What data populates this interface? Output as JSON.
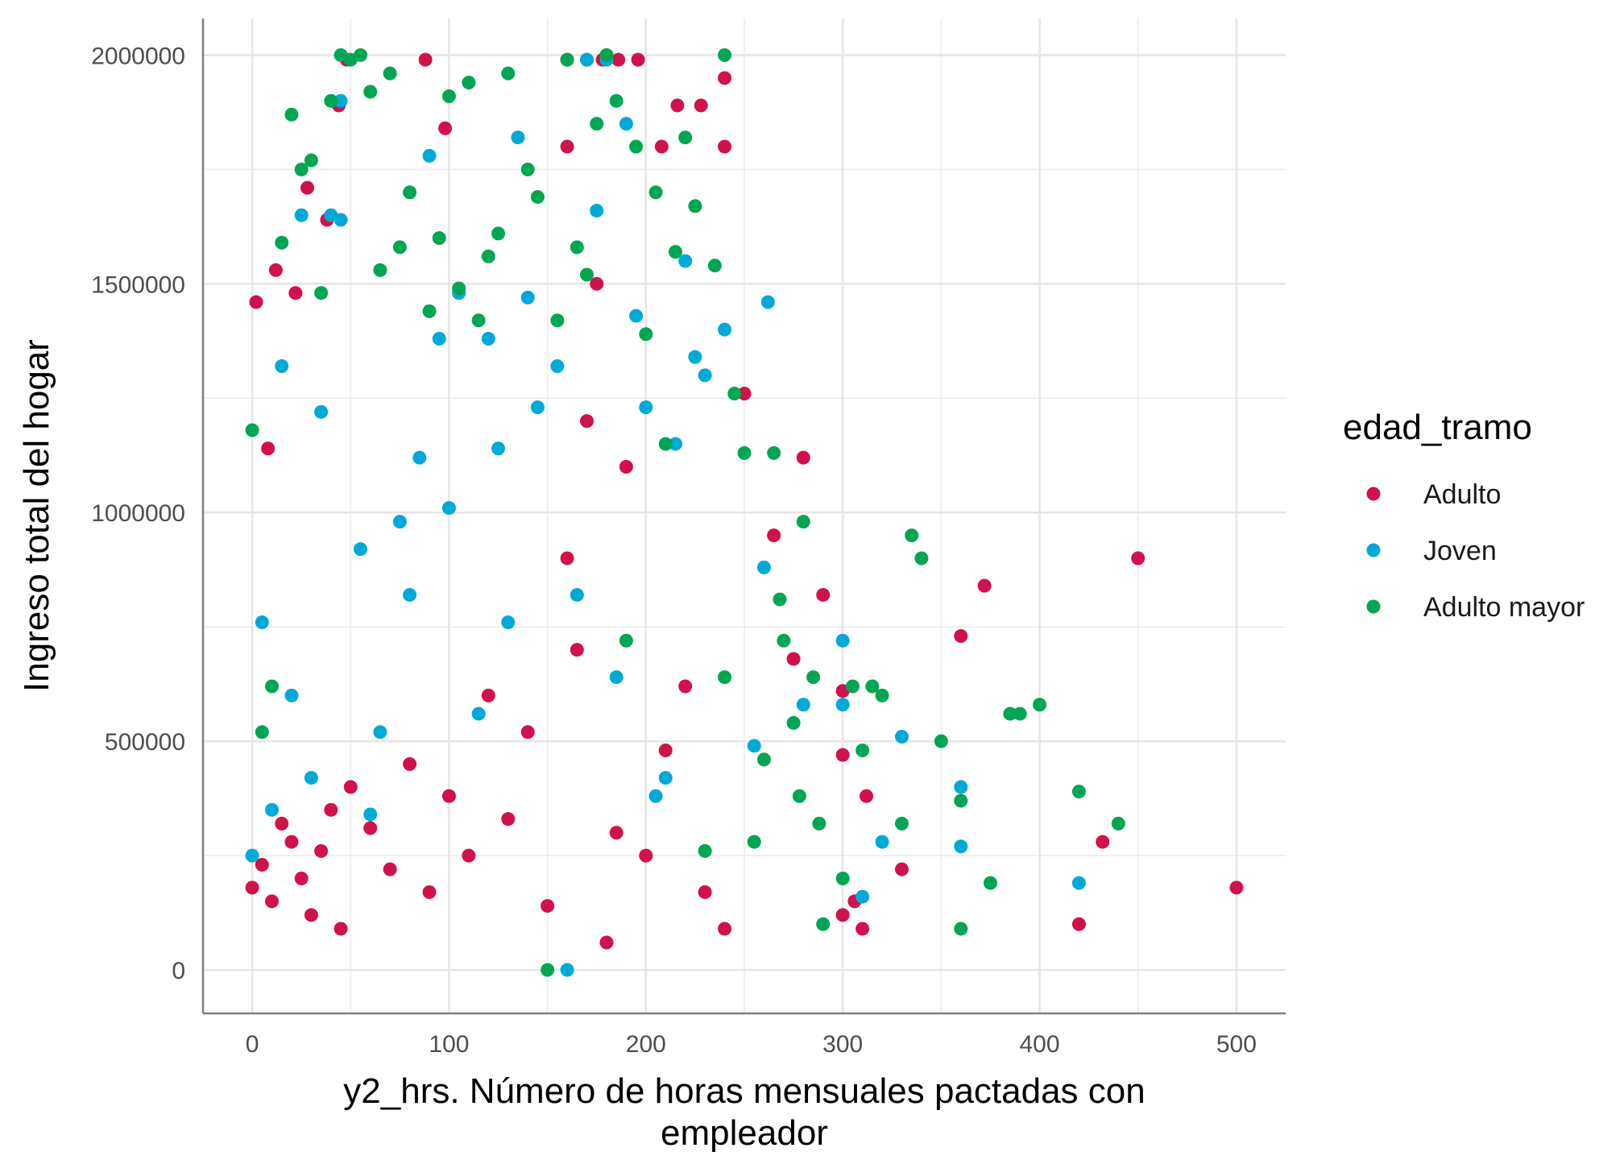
{
  "chart_data": {
    "type": "scatter",
    "title": "",
    "xlabel_lines": [
      "y2_hrs. Número de horas mensuales pactadas con",
      "empleador"
    ],
    "ylabel": "Ingreso total del hogar",
    "xlim": [
      -25,
      525
    ],
    "ylim": [
      -95000,
      2080000
    ],
    "x_ticks": [
      0,
      100,
      200,
      300,
      400,
      500
    ],
    "x_tick_labels": [
      "0",
      "100",
      "200",
      "300",
      "400",
      "500"
    ],
    "y_ticks": [
      0,
      500000,
      1000000,
      1500000,
      2000000
    ],
    "y_tick_labels": [
      "0",
      "500000",
      "1000000",
      "1500000",
      "2000000"
    ],
    "grid": true,
    "legend": {
      "title": "edad_tramo",
      "position": "right",
      "entries": [
        "Adulto",
        "Joven",
        "Adulto mayor"
      ]
    },
    "series": [
      {
        "name": "Adulto",
        "color": "#d0114a",
        "x": [
          0,
          5,
          10,
          15,
          20,
          25,
          30,
          35,
          40,
          45,
          50,
          60,
          70,
          80,
          90,
          100,
          110,
          120,
          130,
          140,
          150,
          160,
          160,
          165,
          170,
          175,
          180,
          180,
          185,
          190,
          200,
          210,
          220,
          230,
          240,
          240,
          250,
          265,
          275,
          280,
          290,
          300,
          300,
          310,
          330,
          360,
          372,
          420,
          432,
          450,
          500,
          2,
          8,
          12,
          22,
          28,
          38,
          44,
          48,
          88,
          98,
          160,
          170,
          178,
          186,
          196,
          208,
          216,
          228,
          240,
          300,
          306,
          312
        ],
        "y": [
          180000,
          230000,
          150000,
          320000,
          280000,
          200000,
          120000,
          260000,
          350000,
          90000,
          400000,
          310000,
          220000,
          450000,
          170000,
          380000,
          250000,
          600000,
          330000,
          520000,
          140000,
          900000,
          1800000,
          700000,
          1200000,
          1500000,
          2000000,
          60000,
          300000,
          1100000,
          250000,
          480000,
          620000,
          170000,
          1950000,
          90000,
          1260000,
          950000,
          680000,
          1120000,
          820000,
          470000,
          120000,
          90000,
          220000,
          730000,
          840000,
          100000,
          280000,
          900000,
          180000,
          1460000,
          1140000,
          1530000,
          1480000,
          1710000,
          1640000,
          1890000,
          1990000,
          1990000,
          1840000,
          1990000,
          1990000,
          1990000,
          1990000,
          1990000,
          1800000,
          1890000,
          1890000,
          1800000,
          610000,
          150000,
          380000
        ]
      },
      {
        "name": "Joven",
        "color": "#00a9d7",
        "x": [
          0,
          10,
          20,
          30,
          40,
          45,
          60,
          80,
          90,
          100,
          120,
          130,
          140,
          160,
          170,
          180,
          190,
          200,
          210,
          220,
          230,
          240,
          255,
          260,
          262,
          280,
          300,
          300,
          310,
          320,
          330,
          360,
          360,
          420,
          5,
          15,
          25,
          35,
          45,
          55,
          65,
          75,
          85,
          95,
          105,
          115,
          125,
          135,
          145,
          155,
          165,
          175,
          185,
          195,
          205,
          215,
          225
        ],
        "y": [
          250000,
          350000,
          600000,
          420000,
          1650000,
          1900000,
          340000,
          820000,
          1780000,
          1010000,
          1380000,
          760000,
          1470000,
          0,
          1990000,
          1990000,
          1850000,
          1230000,
          420000,
          1550000,
          1300000,
          1400000,
          490000,
          880000,
          1460000,
          580000,
          720000,
          580000,
          160000,
          280000,
          510000,
          400000,
          270000,
          190000,
          760000,
          1320000,
          1650000,
          1220000,
          1640000,
          920000,
          520000,
          980000,
          1120000,
          1380000,
          1480000,
          560000,
          1140000,
          1820000,
          1230000,
          1320000,
          820000,
          1660000,
          640000,
          1430000,
          380000,
          1150000,
          1340000
        ]
      },
      {
        "name": "Adulto mayor",
        "color": "#00a651",
        "x": [
          0,
          5,
          10,
          20,
          30,
          40,
          45,
          50,
          55,
          60,
          70,
          80,
          90,
          100,
          110,
          120,
          130,
          140,
          150,
          160,
          170,
          180,
          190,
          200,
          210,
          220,
          230,
          240,
          240,
          250,
          260,
          265,
          270,
          275,
          280,
          285,
          290,
          300,
          305,
          310,
          315,
          320,
          330,
          335,
          340,
          350,
          360,
          360,
          375,
          385,
          390,
          400,
          420,
          440,
          15,
          25,
          35,
          65,
          75,
          95,
          105,
          115,
          125,
          145,
          155,
          165,
          175,
          185,
          195,
          205,
          215,
          225,
          235,
          245,
          255,
          268,
          278,
          288
        ],
        "y": [
          1180000,
          520000,
          620000,
          1870000,
          1770000,
          1900000,
          2000000,
          1990000,
          2000000,
          1920000,
          1960000,
          1700000,
          1440000,
          1910000,
          1940000,
          1560000,
          1960000,
          1750000,
          0,
          1990000,
          1520000,
          2000000,
          720000,
          1390000,
          1150000,
          1820000,
          260000,
          2000000,
          640000,
          1130000,
          460000,
          1130000,
          720000,
          540000,
          980000,
          640000,
          100000,
          200000,
          620000,
          480000,
          620000,
          600000,
          320000,
          950000,
          900000,
          500000,
          90000,
          370000,
          190000,
          560000,
          560000,
          580000,
          390000,
          320000,
          1590000,
          1750000,
          1480000,
          1530000,
          1580000,
          1600000,
          1490000,
          1420000,
          1610000,
          1690000,
          1420000,
          1580000,
          1850000,
          1900000,
          1800000,
          1700000,
          1570000,
          1670000,
          1540000,
          1260000,
          280000,
          810000,
          380000,
          320000
        ]
      }
    ]
  }
}
